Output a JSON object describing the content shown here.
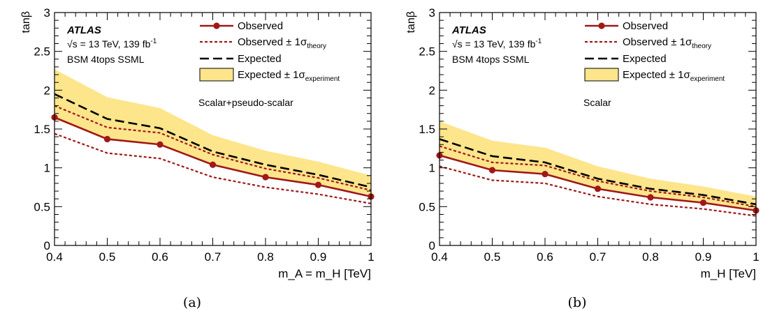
{
  "chart_data": [
    {
      "type": "line",
      "caption": "(a)",
      "xlabel": "m_A = m_H [TeV]",
      "ylabel": "tanβ",
      "xlim": [
        0.4,
        1.0
      ],
      "ylim": [
        0,
        3
      ],
      "x_ticks": [
        "0.4",
        "0.5",
        "0.6",
        "0.7",
        "0.8",
        "0.9",
        "1"
      ],
      "y_ticks": [
        "0",
        "0.5",
        "1",
        "1.5",
        "2",
        "2.5",
        "3"
      ],
      "annotation": {
        "experiment": "ATLAS",
        "energy_prefix": "√s = 13 TeV, 139 fb",
        "energy_sup": "-1",
        "analysis": "BSM 4tops SSML",
        "model": "Scalar+pseudo-scalar"
      },
      "legend": {
        "placement": "top-right",
        "observed": "Observed",
        "observed_theory_main": "Observed ± 1σ",
        "observed_theory_sub": "theory",
        "expected": "Expected",
        "expected_band_main": "Expected ± 1σ",
        "expected_band_sub": "experiment"
      },
      "x": [
        0.4,
        0.5,
        0.6,
        0.7,
        0.8,
        0.9,
        1.0
      ],
      "series": [
        {
          "name": "Observed",
          "values": [
            1.65,
            1.37,
            1.3,
            1.04,
            0.88,
            0.78,
            0.63
          ]
        },
        {
          "name": "Observed + 1σ theory",
          "values": [
            1.8,
            1.52,
            1.45,
            1.17,
            0.99,
            0.87,
            0.71
          ]
        },
        {
          "name": "Observed − 1σ theory",
          "values": [
            1.44,
            1.19,
            1.12,
            0.88,
            0.75,
            0.66,
            0.54
          ]
        },
        {
          "name": "Expected",
          "values": [
            1.95,
            1.63,
            1.51,
            1.21,
            1.04,
            0.91,
            0.75
          ]
        }
      ],
      "band": {
        "upper": [
          2.27,
          1.91,
          1.77,
          1.42,
          1.22,
          1.08,
          0.9
        ],
        "lower": [
          1.63,
          1.36,
          1.29,
          1.04,
          0.89,
          0.78,
          0.65
        ]
      },
      "grid": false
    },
    {
      "type": "line",
      "caption": "(b)",
      "xlabel": "m_H [TeV]",
      "ylabel": "tanβ",
      "xlim": [
        0.4,
        1.0
      ],
      "ylim": [
        0,
        3
      ],
      "x_ticks": [
        "0.4",
        "0.5",
        "0.6",
        "0.7",
        "0.8",
        "0.9",
        "1"
      ],
      "y_ticks": [
        "0",
        "0.5",
        "1",
        "1.5",
        "2",
        "2.5",
        "3"
      ],
      "annotation": {
        "experiment": "ATLAS",
        "energy_prefix": "√s = 13 TeV, 139 fb",
        "energy_sup": "-1",
        "analysis": "BSM 4tops SSML",
        "model": "Scalar"
      },
      "legend": {
        "placement": "top-right",
        "observed": "Observed",
        "observed_theory_main": "Observed ± 1σ",
        "observed_theory_sub": "theory",
        "expected": "Expected",
        "expected_band_main": "Expected ± 1σ",
        "expected_band_sub": "experiment"
      },
      "x": [
        0.4,
        0.5,
        0.6,
        0.7,
        0.8,
        0.9,
        1.0
      ],
      "series": [
        {
          "name": "Observed",
          "values": [
            1.16,
            0.97,
            0.92,
            0.73,
            0.62,
            0.55,
            0.45
          ]
        },
        {
          "name": "Observed + 1σ theory",
          "values": [
            1.28,
            1.07,
            1.03,
            0.83,
            0.7,
            0.62,
            0.5
          ]
        },
        {
          "name": "Observed − 1σ theory",
          "values": [
            1.02,
            0.84,
            0.8,
            0.63,
            0.53,
            0.47,
            0.38
          ]
        },
        {
          "name": "Expected",
          "values": [
            1.37,
            1.15,
            1.07,
            0.86,
            0.73,
            0.65,
            0.53
          ]
        }
      ],
      "band": {
        "upper": [
          1.6,
          1.35,
          1.26,
          1.02,
          0.86,
          0.76,
          0.63
        ],
        "lower": [
          1.15,
          0.97,
          0.91,
          0.74,
          0.62,
          0.55,
          0.46
        ]
      },
      "grid": false
    }
  ],
  "colors": {
    "observed": "#a01818",
    "band_fill": "#fde58b",
    "band_stroke": "#000000",
    "axes": "#000000"
  }
}
